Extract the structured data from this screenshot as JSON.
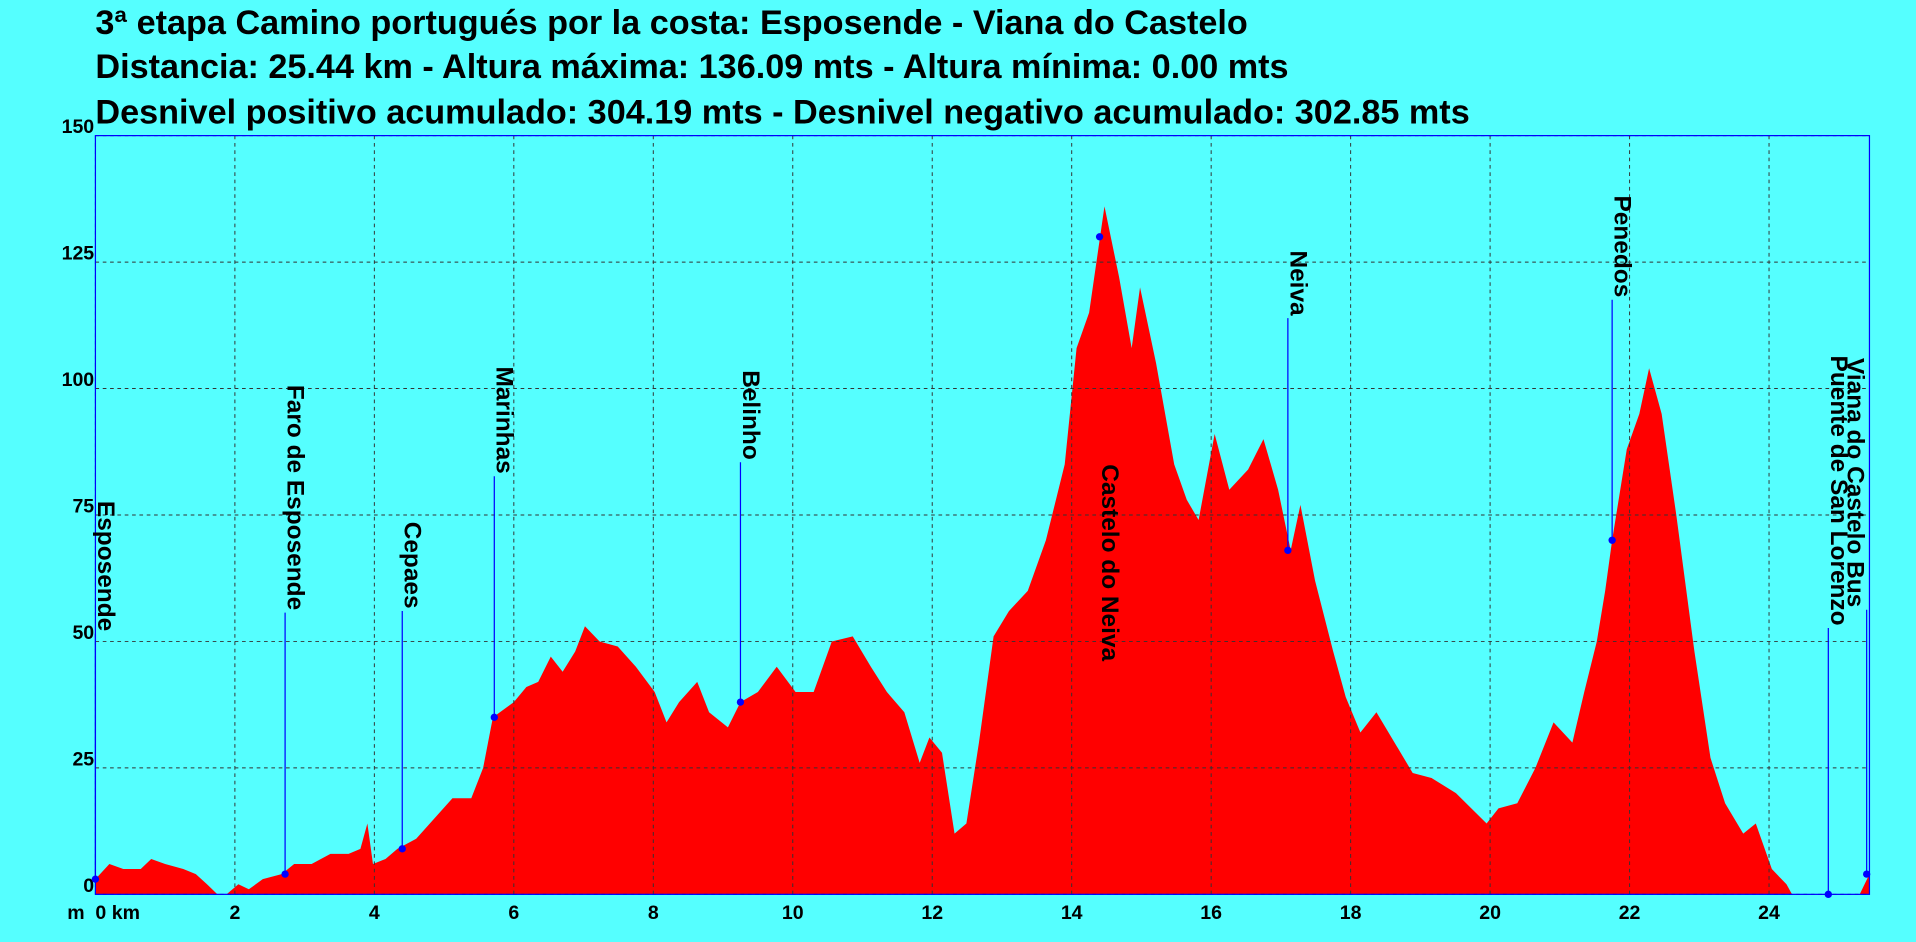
{
  "chart_data": {
    "type": "area",
    "title": [
      "3ª etapa Camino portugués por la costa: Esposende - Viana do Castelo",
      "Distancia: 25.44 km - Altura máxima: 136.09 mts - Altura mínima: 0.00 mts",
      "Desnivel positivo acumulado: 304.19 mts - Desnivel negativo acumulado: 302.85 mts"
    ],
    "y_label": "m",
    "x": [
      0,
      0.2,
      0.4,
      0.65,
      0.8,
      1.0,
      1.26,
      1.44,
      1.6,
      1.75,
      1.88,
      2.05,
      2.2,
      2.4,
      2.67,
      2.85,
      3.1,
      3.37,
      3.63,
      3.8,
      3.9,
      3.98,
      4.16,
      4.33,
      4.6,
      4.86,
      5.12,
      5.39,
      5.56,
      5.7,
      6.0,
      6.18,
      6.35,
      6.53,
      6.7,
      6.88,
      7.02,
      7.23,
      7.49,
      7.75,
      8.02,
      8.19,
      8.37,
      8.63,
      8.8,
      9.07,
      9.25,
      9.5,
      9.77,
      10.04,
      10.3,
      10.56,
      10.86,
      11.12,
      11.35,
      11.6,
      11.82,
      11.96,
      12.14,
      12.32,
      12.49,
      12.67,
      12.88,
      13.1,
      13.37,
      13.63,
      13.9,
      14.07,
      14.25,
      14.47,
      14.68,
      14.86,
      14.98,
      15.21,
      15.47,
      15.65,
      15.82,
      16.05,
      16.26,
      16.53,
      16.75,
      16.96,
      17.14,
      17.28,
      17.49,
      17.75,
      17.93,
      18.14,
      18.37,
      18.63,
      18.89,
      19.16,
      19.51,
      19.95,
      20.12,
      20.39,
      20.65,
      20.91,
      21.18,
      21.35,
      21.53,
      21.65,
      21.75,
      21.96,
      22.14,
      22.28,
      22.46,
      22.67,
      22.93,
      23.16,
      23.37,
      23.63,
      23.81,
      24.04,
      24.25,
      24.33,
      24.77,
      25.3,
      25.44
    ],
    "values": [
      3,
      6,
      5,
      5,
      7,
      6,
      5,
      4,
      2,
      0,
      0,
      2,
      1,
      3,
      4,
      6,
      6,
      8,
      8,
      9,
      14,
      6,
      7,
      9,
      11,
      15,
      19,
      19,
      25,
      35,
      38,
      41,
      42,
      47,
      44,
      48,
      53,
      50,
      49,
      45,
      40,
      34,
      38,
      42,
      36,
      33,
      38,
      40,
      45,
      40,
      40,
      50,
      51,
      45,
      40,
      36,
      26,
      31,
      28,
      12,
      14,
      30,
      51,
      56,
      60,
      70,
      85,
      108,
      115,
      136,
      122,
      108,
      120,
      105,
      85,
      78,
      74,
      91,
      80,
      84,
      90,
      80,
      68,
      77,
      62,
      48,
      39,
      32,
      36,
      30,
      24,
      23,
      20,
      14,
      17,
      18,
      25,
      34,
      30,
      40,
      50,
      60,
      70,
      88,
      95,
      104,
      95,
      75,
      48,
      27,
      18,
      12,
      14,
      5,
      2,
      0,
      0,
      0,
      4
    ],
    "color": "#ff0000",
    "xlim": [
      0,
      25.44
    ],
    "ylim": [
      0,
      150
    ],
    "xticks": [
      {
        "value": 0,
        "label": "0 km"
      },
      2,
      4,
      6,
      8,
      10,
      12,
      14,
      16,
      18,
      20,
      22,
      24
    ],
    "yticks": [
      0,
      25,
      50,
      75,
      100,
      125,
      150
    ],
    "grid": true,
    "waypoint_color": "#0000ff",
    "waypoints": [
      {
        "name": "Esposende",
        "x": 0,
        "y": 3
      },
      {
        "name": "Faro de Esposende",
        "x": 2.72,
        "y": 4
      },
      {
        "name": "Cepaes",
        "x": 4.4,
        "y": 9
      },
      {
        "name": "Marinhas",
        "x": 5.72,
        "y": 35
      },
      {
        "name": "Belinho",
        "x": 9.25,
        "y": 38
      },
      {
        "name": "Castelo do Neiva",
        "x": 14.4,
        "y": 130
      },
      {
        "name": "Neiva",
        "x": 17.1,
        "y": 68
      },
      {
        "name": "Penedos",
        "x": 21.75,
        "y": 70
      },
      {
        "name": "Puente de San Lorenzo",
        "x": 24.85,
        "y": 0
      },
      {
        "name": "Viana do Castelo Bus",
        "x": 25.4,
        "y": 4
      }
    ]
  }
}
